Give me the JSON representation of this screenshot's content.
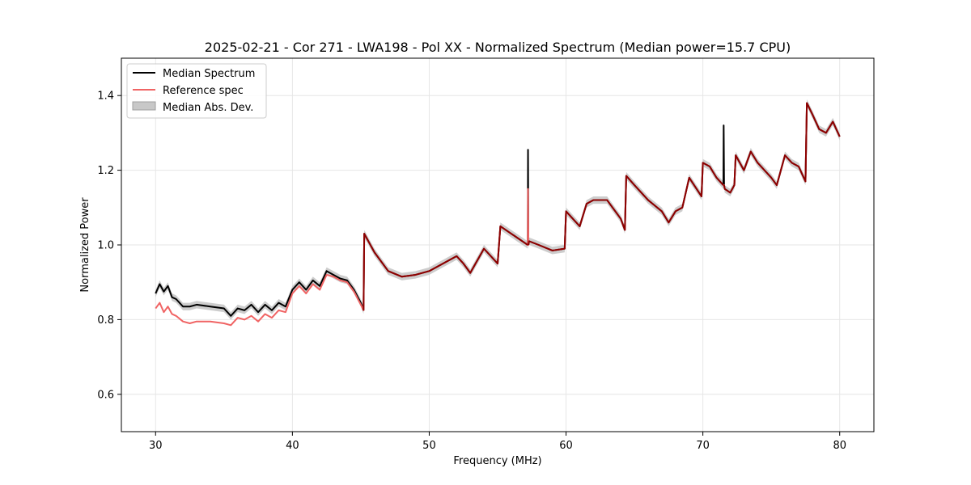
{
  "chart_data": {
    "type": "line",
    "title": "2025-02-21 - Cor 271 - LWA198 - Pol XX - Normalized Spectrum (Median power=15.7 CPU)",
    "xlabel": "Frequency (MHz)",
    "ylabel": "Normalized Power",
    "xlim": [
      27.5,
      82.5
    ],
    "ylim": [
      0.5,
      1.5
    ],
    "xticks": [
      30,
      40,
      50,
      60,
      70,
      80
    ],
    "yticks": [
      0.6,
      0.8,
      1.0,
      1.2,
      1.4
    ],
    "xtick_labels": [
      "30",
      "40",
      "50",
      "60",
      "70",
      "80"
    ],
    "ytick_labels": [
      "0.6",
      "0.8",
      "1.0",
      "1.2",
      "1.4"
    ],
    "grid": true,
    "legend_position": "top-left",
    "legend": [
      "Median Spectrum",
      "Reference spec",
      "Median Abs. Dev."
    ],
    "mad": 0.01,
    "colors": {
      "median": "#000000",
      "reference": "#f06464",
      "mad": "#c8c8c8",
      "overlap": "#8b0000",
      "grid": "#e6e6e6"
    },
    "series": [
      {
        "name": "Median Spectrum",
        "x": [
          30.0,
          30.3,
          30.6,
          30.9,
          31.2,
          31.5,
          32.0,
          32.5,
          33.0,
          34.0,
          35.0,
          35.5,
          36.0,
          36.5,
          37.0,
          37.5,
          38.0,
          38.5,
          39.0,
          39.5,
          40.0,
          40.5,
          41.0,
          41.5,
          42.0,
          42.5,
          43.0,
          43.5,
          44.0,
          44.5,
          45.0,
          45.2,
          45.25,
          46.0,
          47.0,
          48.0,
          49.0,
          50.0,
          51.0,
          52.0,
          52.5,
          53.0,
          54.0,
          55.0,
          55.2,
          56.0,
          57.0,
          57.2,
          57.22,
          57.25,
          57.3,
          58.0,
          59.0,
          59.9,
          60.0,
          61.0,
          61.5,
          62.0,
          63.0,
          64.0,
          64.3,
          64.4,
          65.0,
          66.0,
          67.0,
          67.5,
          68.0,
          68.5,
          69.0,
          69.9,
          70.0,
          70.5,
          71.0,
          71.5,
          71.52,
          71.55,
          71.6,
          72.0,
          72.3,
          72.4,
          73.0,
          73.5,
          74.0,
          75.0,
          75.4,
          76.0,
          76.5,
          77.0,
          77.5,
          77.6,
          78.0,
          78.5,
          79.0,
          79.5,
          80.0
        ],
        "values": [
          0.87,
          0.895,
          0.875,
          0.89,
          0.86,
          0.855,
          0.835,
          0.835,
          0.84,
          0.835,
          0.83,
          0.81,
          0.83,
          0.825,
          0.84,
          0.82,
          0.84,
          0.825,
          0.845,
          0.835,
          0.88,
          0.9,
          0.88,
          0.905,
          0.89,
          0.93,
          0.92,
          0.91,
          0.905,
          0.88,
          0.845,
          0.825,
          1.03,
          0.98,
          0.93,
          0.915,
          0.92,
          0.93,
          0.95,
          0.97,
          0.95,
          0.925,
          0.99,
          0.95,
          1.05,
          1.03,
          1.005,
          1.0,
          1.255,
          1.0,
          1.01,
          1.0,
          0.985,
          0.99,
          1.09,
          1.05,
          1.11,
          1.12,
          1.12,
          1.07,
          1.04,
          1.185,
          1.16,
          1.12,
          1.09,
          1.06,
          1.09,
          1.1,
          1.18,
          1.13,
          1.22,
          1.21,
          1.18,
          1.16,
          1.32,
          1.16,
          1.15,
          1.14,
          1.16,
          1.24,
          1.2,
          1.25,
          1.22,
          1.18,
          1.16,
          1.24,
          1.22,
          1.21,
          1.17,
          1.38,
          1.35,
          1.31,
          1.3,
          1.33,
          1.29
        ]
      },
      {
        "name": "Reference spec",
        "x": [
          30.0,
          30.3,
          30.6,
          30.9,
          31.2,
          31.5,
          32.0,
          32.5,
          33.0,
          34.0,
          35.0,
          35.5,
          36.0,
          36.5,
          37.0,
          37.5,
          38.0,
          38.5,
          39.0,
          39.5,
          40.0,
          40.5,
          41.0,
          41.5,
          42.0,
          42.5,
          43.0,
          43.5,
          44.0,
          44.5,
          45.0,
          45.2,
          45.25,
          46.0,
          47.0,
          48.0,
          49.0,
          50.0,
          51.0,
          52.0,
          52.5,
          53.0,
          54.0,
          55.0,
          55.2,
          56.0,
          57.0,
          57.2,
          57.22,
          57.25,
          57.3,
          58.0,
          59.0,
          59.9,
          60.0,
          61.0,
          61.5,
          62.0,
          63.0,
          64.0,
          64.3,
          64.4,
          65.0,
          66.0,
          67.0,
          67.5,
          68.0,
          68.5,
          69.0,
          69.9,
          70.0,
          70.5,
          71.0,
          71.5,
          71.52,
          71.55,
          71.6,
          72.0,
          72.3,
          72.4,
          73.0,
          73.5,
          74.0,
          75.0,
          75.4,
          76.0,
          76.5,
          77.0,
          77.5,
          77.6,
          78.0,
          78.5,
          79.0,
          79.5,
          80.0
        ],
        "values": [
          0.83,
          0.845,
          0.82,
          0.835,
          0.815,
          0.81,
          0.795,
          0.79,
          0.795,
          0.795,
          0.79,
          0.785,
          0.805,
          0.8,
          0.81,
          0.795,
          0.815,
          0.805,
          0.825,
          0.82,
          0.87,
          0.89,
          0.87,
          0.895,
          0.88,
          0.92,
          0.915,
          0.905,
          0.9,
          0.875,
          0.84,
          0.825,
          1.03,
          0.98,
          0.93,
          0.915,
          0.92,
          0.93,
          0.95,
          0.97,
          0.95,
          0.925,
          0.99,
          0.95,
          1.05,
          1.03,
          1.005,
          1.0,
          1.15,
          1.0,
          1.01,
          1.0,
          0.985,
          0.99,
          1.09,
          1.05,
          1.11,
          1.12,
          1.12,
          1.07,
          1.04,
          1.185,
          1.16,
          1.12,
          1.09,
          1.06,
          1.09,
          1.1,
          1.18,
          1.13,
          1.22,
          1.21,
          1.18,
          1.16,
          1.16,
          1.16,
          1.15,
          1.14,
          1.16,
          1.24,
          1.2,
          1.25,
          1.22,
          1.18,
          1.16,
          1.24,
          1.22,
          1.21,
          1.17,
          1.38,
          1.35,
          1.31,
          1.3,
          1.33,
          1.29
        ]
      }
    ]
  }
}
